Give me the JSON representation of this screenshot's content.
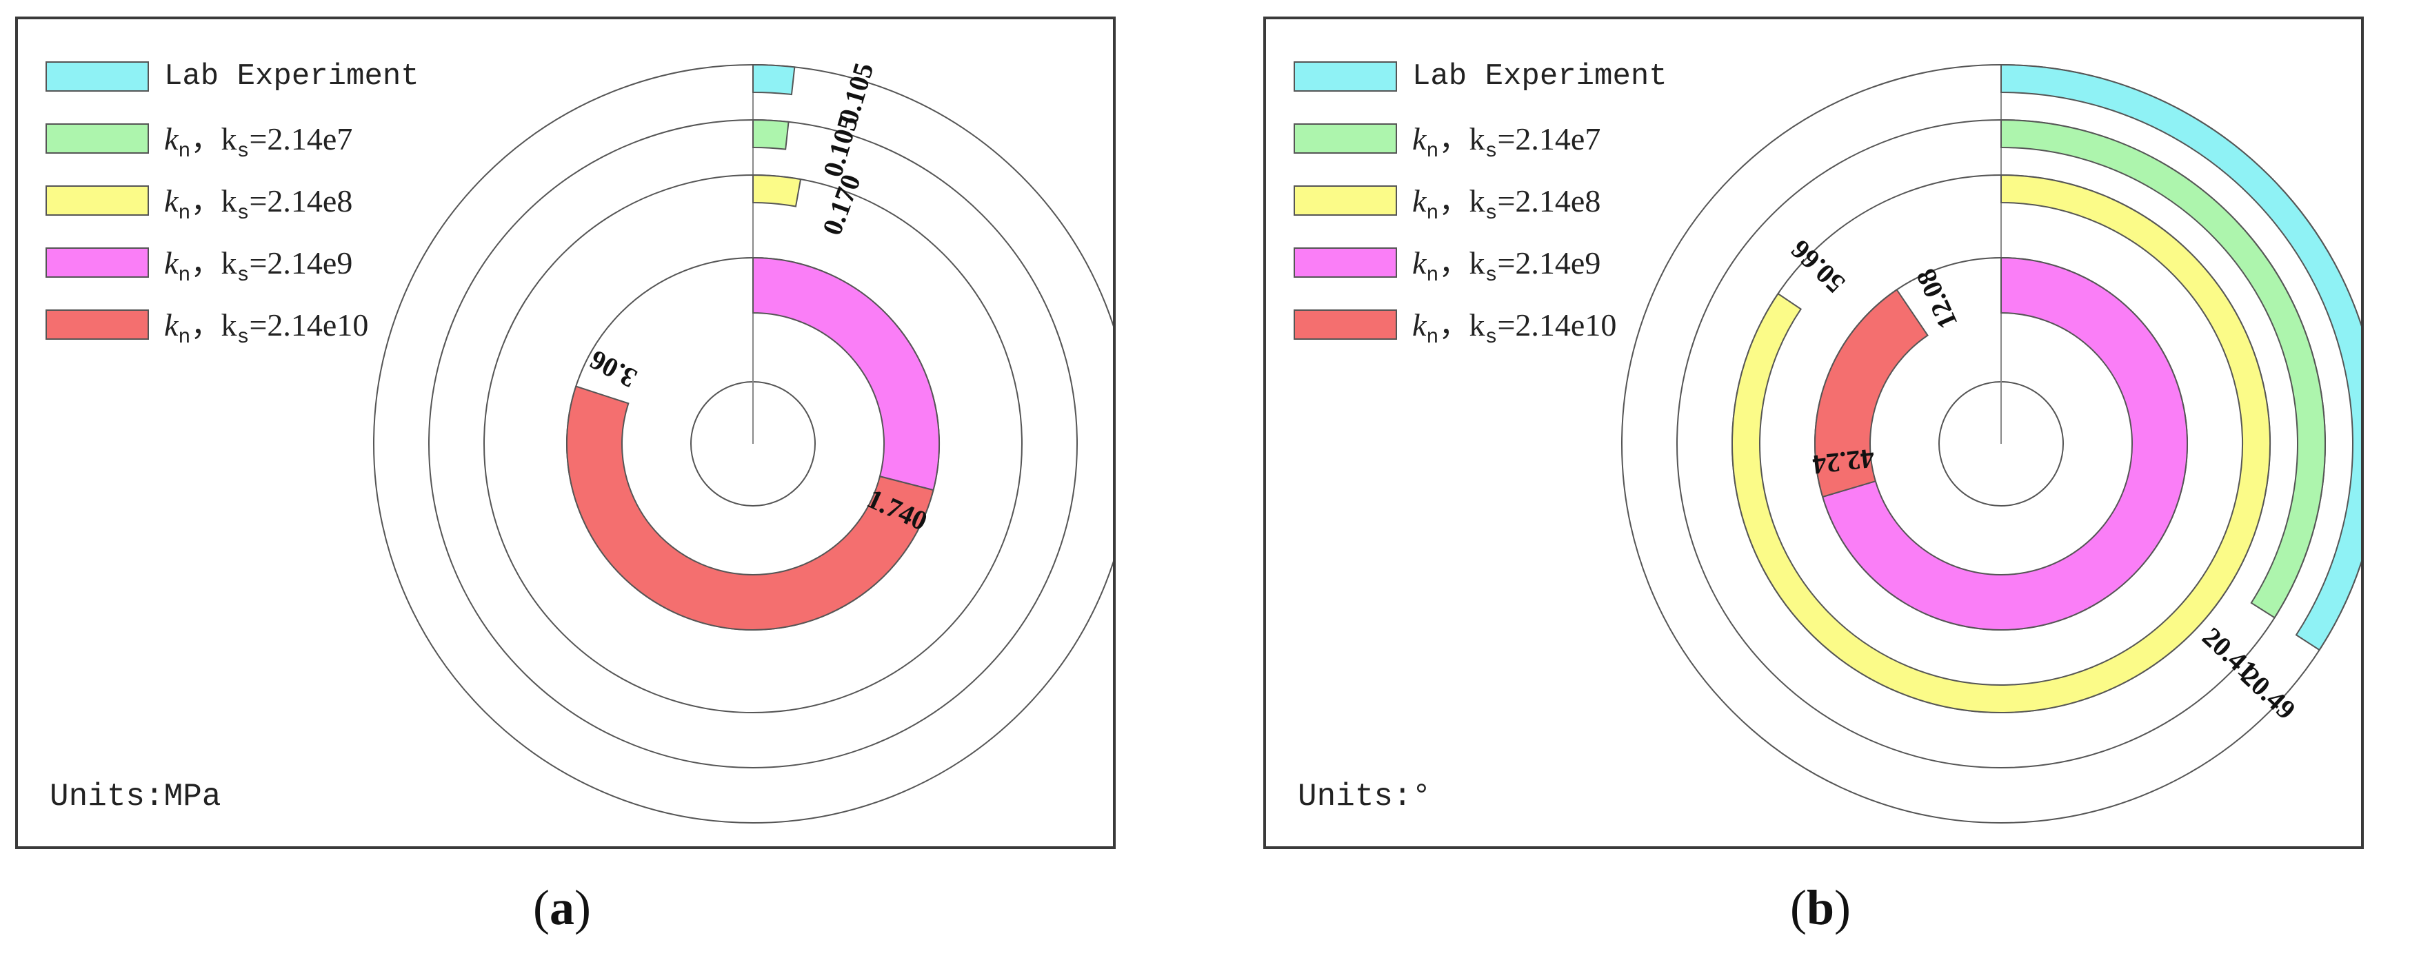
{
  "panels": [
    {
      "caption_letter": "a",
      "units": "Units:MPa",
      "legend": [
        {
          "label_text": "Lab Experiment",
          "color": "#8ff2f5"
        },
        {
          "kn": "k",
          "kn_sub": "n",
          "sep": "，",
          "ks": "k",
          "ks_sub": "s",
          "value": "=2.14e7",
          "color": "#adf5ad"
        },
        {
          "kn": "k",
          "kn_sub": "n",
          "sep": "，",
          "ks": "k",
          "ks_sub": "s",
          "value": "=2.14e8",
          "color": "#fbfb88"
        },
        {
          "kn": "k",
          "kn_sub": "n",
          "sep": "，",
          "ks": "k",
          "ks_sub": "s",
          "value": "=2.14e9",
          "color": "#fa7ef7"
        },
        {
          "kn": "k",
          "kn_sub": "n",
          "sep": "，",
          "ks": "k",
          "ks_sub": "s",
          "value": "=2.14e10",
          "color": "#f46f6f"
        }
      ]
    },
    {
      "caption_letter": "b",
      "units": "Units:°",
      "legend": [
        {
          "label_text": "Lab Experiment",
          "color": "#8ff2f5"
        },
        {
          "kn": "k",
          "kn_sub": "n",
          "sep": "，",
          "ks": "k",
          "ks_sub": "s",
          "value": "=2.14e7",
          "color": "#adf5ad"
        },
        {
          "kn": "k",
          "kn_sub": "n",
          "sep": "，",
          "ks": "k",
          "ks_sub": "s",
          "value": "=2.14e8",
          "color": "#fbfb88"
        },
        {
          "kn": "k",
          "kn_sub": "n",
          "sep": "，",
          "ks": "k",
          "ks_sub": "s",
          "value": "=2.14e9",
          "color": "#fa7ef7"
        },
        {
          "kn": "k",
          "kn_sub": "n",
          "sep": "，",
          "ks": "k",
          "ks_sub": "s",
          "value": "=2.14e10",
          "color": "#f46f6f"
        }
      ]
    }
  ],
  "chart_data": [
    {
      "type": "radial-bar",
      "units": "MPa",
      "series": [
        {
          "name": "Lab Experiment",
          "value": 0.105,
          "label": "0.105",
          "color": "#8ff2f5"
        },
        {
          "name": "kn, ks=2.14e7",
          "value": 0.105,
          "label": "0.105",
          "color": "#adf5ad"
        },
        {
          "name": "kn, ks=2.14e8",
          "value": 0.17,
          "label": "0.170",
          "color": "#fbfb88"
        },
        {
          "name": "kn, ks=2.14e9",
          "value": 1.74,
          "label": "1.740",
          "color": "#fa7ef7"
        },
        {
          "name": "kn, ks=2.14e10",
          "value": 3.06,
          "label": "3.06",
          "color": "#f46f6f"
        }
      ],
      "full_scale": 6.0,
      "data_label_texts": [
        "0.105",
        "0.105",
        "0.170",
        "1.740",
        "3.06"
      ]
    },
    {
      "type": "radial-bar",
      "units": "°",
      "series": [
        {
          "name": "Lab Experiment",
          "value": 20.49,
          "label": "20.49",
          "color": "#8ff2f5"
        },
        {
          "name": "kn, ks=2.14e7",
          "value": 20.41,
          "label": "20.41",
          "color": "#adf5ad"
        },
        {
          "name": "kn, ks=2.14e8",
          "value": 50.66,
          "label": "50.66",
          "color": "#fbfb88"
        },
        {
          "name": "kn, ks=2.14e9",
          "value": 42.24,
          "label": "42.24",
          "color": "#fa7ef7"
        },
        {
          "name": "kn, ks=2.14e10",
          "value": 12.08,
          "label": "12.08",
          "color": "#f46f6f"
        }
      ],
      "full_scale": 60.0,
      "data_label_texts": [
        "20.49",
        "20.41",
        "50.66",
        "42.24",
        "12.08"
      ]
    }
  ]
}
